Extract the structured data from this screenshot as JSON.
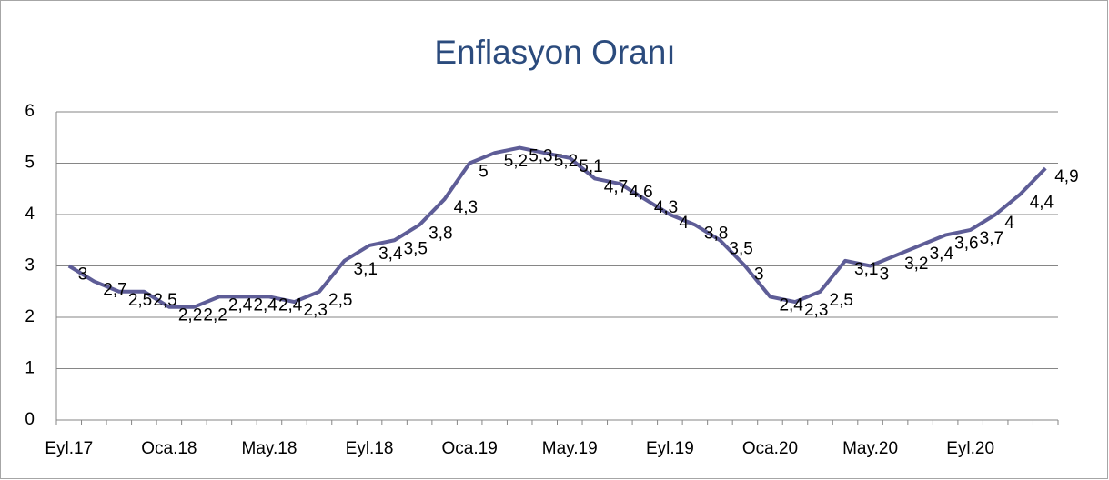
{
  "chart_data": {
    "type": "line",
    "title": "Enflasyon Oranı",
    "categories": [
      "Eyl.17",
      null,
      null,
      null,
      "Oca.18",
      null,
      null,
      null,
      "May.18",
      null,
      null,
      null,
      "Eyl.18",
      null,
      null,
      null,
      "Oca.19",
      null,
      null,
      null,
      "May.19",
      null,
      null,
      null,
      "Eyl.19",
      null,
      null,
      null,
      "Oca.20",
      null,
      null,
      null,
      "May.20",
      null,
      null,
      null,
      "Eyl.20",
      null,
      null,
      null
    ],
    "values": [
      3,
      2.7,
      2.5,
      2.5,
      2.2,
      2.2,
      2.4,
      2.4,
      2.4,
      2.3,
      2.5,
      3.1,
      3.4,
      3.5,
      3.8,
      4.3,
      5,
      5.2,
      5.3,
      5.2,
      5.1,
      4.7,
      4.6,
      4.3,
      4,
      3.8,
      3.5,
      3,
      2.4,
      2.3,
      2.5,
      3.1,
      3,
      3.2,
      3.4,
      3.6,
      3.7,
      4,
      4.4,
      4.9
    ],
    "value_labels": [
      "3",
      "2,7",
      "2,5",
      "2,5",
      "2,2",
      "2,2",
      "2,4",
      "2,4",
      "2,4",
      "2,3",
      "2,5",
      "3,1",
      "3,4",
      "3,5",
      "3,8",
      "4,3",
      "5",
      "5,2",
      "5,3",
      "5,2",
      "5,1",
      "4,7",
      "4,6",
      "4,3",
      "4",
      "3,8",
      "3,5",
      "3",
      "2,4",
      "2,3",
      "2,5",
      "3,1",
      "3",
      "3,2",
      "3,4",
      "3,6",
      "3,7",
      "4",
      "4,4",
      "4,9"
    ],
    "color": "#5e5d97",
    "ylim": [
      0,
      6
    ],
    "yticks": [
      0,
      1,
      2,
      3,
      4,
      5,
      6
    ],
    "grid": true
  }
}
